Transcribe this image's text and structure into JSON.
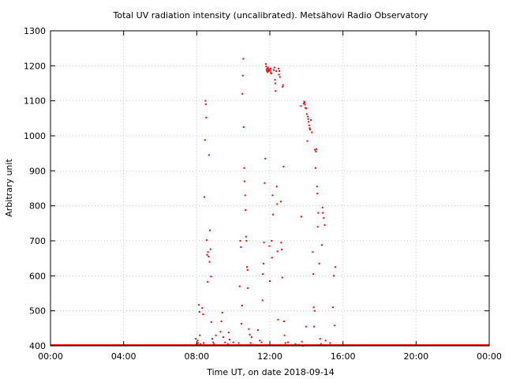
{
  "chart_data": {
    "type": "scatter",
    "title": "Total UV radiation intensity (uncalibrated). Metsähovi Radio Observatory",
    "xlabel": "Time UT, on date 2018-09-14",
    "ylabel": "Arbitrary unit",
    "xlim": [
      0,
      24
    ],
    "ylim": [
      400,
      1300
    ],
    "x_unit": "hours UT",
    "x_ticks": [
      {
        "value": 0,
        "label": "00:00"
      },
      {
        "value": 4,
        "label": "04:00"
      },
      {
        "value": 8,
        "label": "08:00"
      },
      {
        "value": 12,
        "label": "12:00"
      },
      {
        "value": 16,
        "label": "16:00"
      },
      {
        "value": 20,
        "label": "20:00"
      },
      {
        "value": 24,
        "label": "00:00"
      }
    ],
    "y_ticks": [
      {
        "value": 400,
        "label": "400"
      },
      {
        "value": 500,
        "label": "500"
      },
      {
        "value": 600,
        "label": "600"
      },
      {
        "value": 700,
        "label": "700"
      },
      {
        "value": 800,
        "label": "800"
      },
      {
        "value": 900,
        "label": "900"
      },
      {
        "value": 1000,
        "label": "1000"
      },
      {
        "value": 1100,
        "label": "1100"
      },
      {
        "value": 1200,
        "label": "1200"
      },
      {
        "value": 1300,
        "label": "1300"
      }
    ],
    "grid": true,
    "color": "#ff0000",
    "baseline": {
      "y": 400,
      "x_range": [
        0,
        24
      ]
    },
    "points": [
      [
        7.95,
        420
      ],
      [
        8.0,
        405
      ],
      [
        8.05,
        415
      ],
      [
        8.08,
        408
      ],
      [
        8.12,
        517
      ],
      [
        8.15,
        497
      ],
      [
        8.17,
        430
      ],
      [
        8.2,
        405
      ],
      [
        8.3,
        508
      ],
      [
        8.35,
        490
      ],
      [
        8.38,
        408
      ],
      [
        8.42,
        825
      ],
      [
        8.45,
        988
      ],
      [
        8.48,
        1100
      ],
      [
        8.5,
        1090
      ],
      [
        8.52,
        1052
      ],
      [
        8.55,
        702
      ],
      [
        8.57,
        660
      ],
      [
        8.6,
        583
      ],
      [
        8.62,
        668
      ],
      [
        8.65,
        655
      ],
      [
        8.67,
        945
      ],
      [
        8.7,
        640
      ],
      [
        8.72,
        730
      ],
      [
        8.75,
        676
      ],
      [
        8.78,
        598
      ],
      [
        8.8,
        468
      ],
      [
        8.85,
        420
      ],
      [
        8.9,
        410
      ],
      [
        8.95,
        405
      ],
      [
        9.05,
        430
      ],
      [
        9.15,
        402
      ],
      [
        9.3,
        440
      ],
      [
        9.35,
        470
      ],
      [
        9.4,
        495
      ],
      [
        9.45,
        425
      ],
      [
        9.55,
        410
      ],
      [
        9.7,
        405
      ],
      [
        9.75,
        438
      ],
      [
        9.8,
        418
      ],
      [
        10.0,
        410
      ],
      [
        10.05,
        402
      ],
      [
        10.2,
        402
      ],
      [
        10.3,
        408
      ],
      [
        10.35,
        570
      ],
      [
        10.38,
        700
      ],
      [
        10.42,
        682
      ],
      [
        10.45,
        463
      ],
      [
        10.48,
        515
      ],
      [
        10.5,
        1120
      ],
      [
        10.52,
        1172
      ],
      [
        10.55,
        1220
      ],
      [
        10.57,
        1025
      ],
      [
        10.6,
        908
      ],
      [
        10.62,
        870
      ],
      [
        10.65,
        830
      ],
      [
        10.67,
        788
      ],
      [
        10.7,
        712
      ],
      [
        10.72,
        700
      ],
      [
        10.75,
        625
      ],
      [
        10.78,
        617
      ],
      [
        10.8,
        565
      ],
      [
        10.85,
        448
      ],
      [
        10.9,
        432
      ],
      [
        10.95,
        408
      ],
      [
        11.0,
        425
      ],
      [
        11.1,
        403
      ],
      [
        11.25,
        402
      ],
      [
        11.35,
        445
      ],
      [
        11.45,
        415
      ],
      [
        11.55,
        410
      ],
      [
        11.6,
        530
      ],
      [
        11.62,
        605
      ],
      [
        11.65,
        635
      ],
      [
        11.68,
        695
      ],
      [
        11.7,
        402
      ],
      [
        11.72,
        865
      ],
      [
        11.75,
        935
      ],
      [
        11.78,
        1205
      ],
      [
        11.8,
        1198
      ],
      [
        11.82,
        1190
      ],
      [
        11.84,
        1185
      ],
      [
        11.86,
        1192
      ],
      [
        11.88,
        1182
      ],
      [
        11.9,
        1195
      ],
      [
        11.92,
        1188
      ],
      [
        11.94,
        1185
      ],
      [
        11.96,
        1190
      ],
      [
        11.98,
        685
      ],
      [
        12.0,
        585
      ],
      [
        12.02,
        1186
      ],
      [
        12.04,
        1192
      ],
      [
        12.06,
        1180
      ],
      [
        12.08,
        1178
      ],
      [
        12.1,
        700
      ],
      [
        12.12,
        652
      ],
      [
        12.15,
        830
      ],
      [
        12.18,
        775
      ],
      [
        12.22,
        1188
      ],
      [
        12.25,
        1195
      ],
      [
        12.28,
        1160
      ],
      [
        12.3,
        1150
      ],
      [
        12.32,
        1128
      ],
      [
        12.35,
        1185
      ],
      [
        12.38,
        855
      ],
      [
        12.4,
        805
      ],
      [
        12.42,
        670
      ],
      [
        12.45,
        475
      ],
      [
        12.48,
        1192
      ],
      [
        12.5,
        1175
      ],
      [
        12.52,
        1185
      ],
      [
        12.55,
        1168
      ],
      [
        12.6,
        812
      ],
      [
        12.62,
        695
      ],
      [
        12.65,
        675
      ],
      [
        12.68,
        595
      ],
      [
        12.7,
        1140
      ],
      [
        12.72,
        1145
      ],
      [
        12.75,
        912
      ],
      [
        12.78,
        470
      ],
      [
        12.8,
        430
      ],
      [
        12.85,
        408
      ],
      [
        12.9,
        402
      ],
      [
        13.0,
        410
      ],
      [
        13.2,
        402
      ],
      [
        13.4,
        405
      ],
      [
        13.6,
        403
      ],
      [
        13.7,
        1085
      ],
      [
        13.72,
        769
      ],
      [
        13.75,
        412
      ],
      [
        13.8,
        400
      ],
      [
        13.85,
        1092
      ],
      [
        13.88,
        1098
      ],
      [
        13.9,
        1095
      ],
      [
        13.92,
        1089
      ],
      [
        13.95,
        1080
      ],
      [
        13.98,
        455
      ],
      [
        14.0,
        1078
      ],
      [
        14.02,
        1062
      ],
      [
        14.05,
        985
      ],
      [
        14.08,
        1055
      ],
      [
        14.1,
        1048
      ],
      [
        14.12,
        1040
      ],
      [
        14.15,
        1030
      ],
      [
        14.18,
        1022
      ],
      [
        14.2,
        1018
      ],
      [
        14.25,
        1045
      ],
      [
        14.3,
        1010
      ],
      [
        14.35,
        668
      ],
      [
        14.38,
        605
      ],
      [
        14.4,
        510
      ],
      [
        14.42,
        455
      ],
      [
        14.45,
        500
      ],
      [
        14.47,
        960
      ],
      [
        14.5,
        908
      ],
      [
        14.52,
        955
      ],
      [
        14.55,
        962
      ],
      [
        14.58,
        855
      ],
      [
        14.6,
        835
      ],
      [
        14.62,
        740
      ],
      [
        14.65,
        780
      ],
      [
        14.7,
        635
      ],
      [
        14.75,
        420
      ],
      [
        14.8,
        405
      ],
      [
        14.85,
        688
      ],
      [
        14.88,
        795
      ],
      [
        14.9,
        780
      ],
      [
        14.95,
        765
      ],
      [
        15.0,
        745
      ],
      [
        15.05,
        415
      ],
      [
        15.2,
        402
      ],
      [
        15.3,
        408
      ],
      [
        15.45,
        510
      ],
      [
        15.5,
        600
      ],
      [
        15.55,
        458
      ],
      [
        15.58,
        625
      ],
      [
        15.6,
        402
      ]
    ]
  }
}
